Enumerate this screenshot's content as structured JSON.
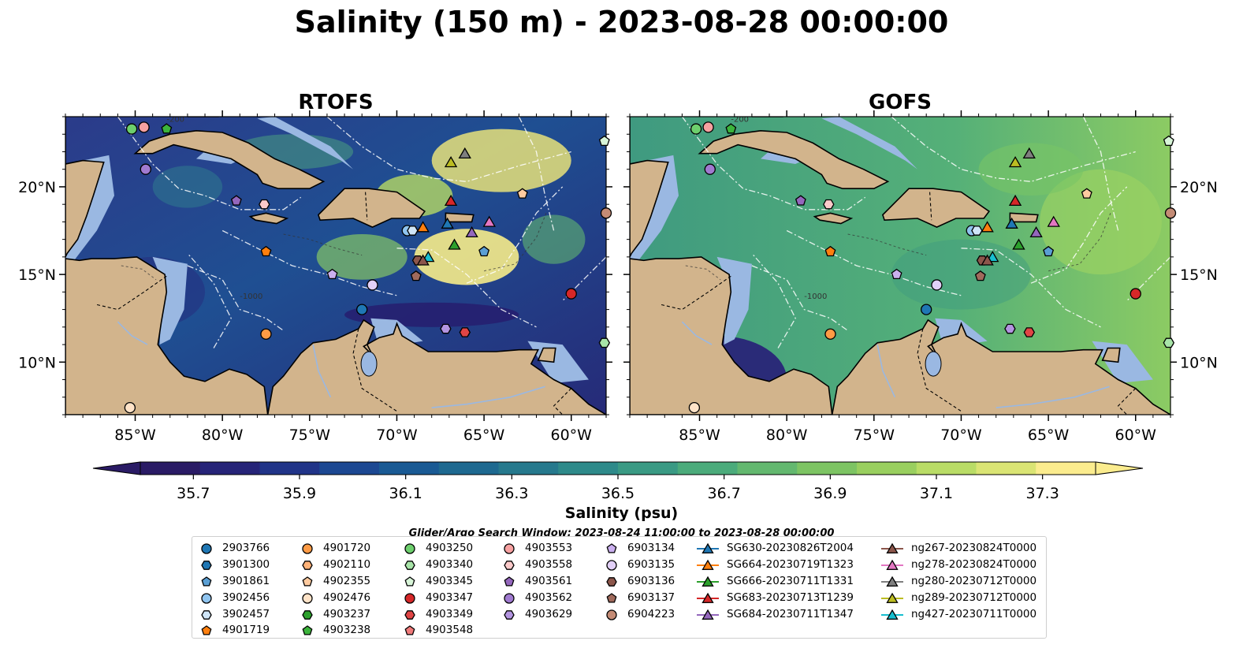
{
  "title": "Salinity (150 m) - 2023-08-28 00:00:00",
  "panels": [
    {
      "name": "RTOFS"
    },
    {
      "name": "GOFS"
    }
  ],
  "map": {
    "lon_range": [
      -89,
      -58
    ],
    "lat_range": [
      7,
      24
    ],
    "lon_ticks": [
      "85°W",
      "80°W",
      "75°W",
      "70°W",
      "65°W",
      "60°W"
    ],
    "lon_tick_values": [
      -85,
      -80,
      -75,
      -70,
      -65,
      -60
    ],
    "lat_ticks": [
      "20°N",
      "15°N",
      "10°N"
    ],
    "lat_tick_values": [
      20,
      15,
      10
    ],
    "land_color": "#d2b48c",
    "shelf_color": "#9ab8e2",
    "bathymetry_contour_labels": [
      "-200",
      "-1000"
    ]
  },
  "colorbar": {
    "label": "Salinity (psu)",
    "range": [
      35.6,
      37.4
    ],
    "tick_labels": [
      "35.7",
      "35.9",
      "36.1",
      "36.3",
      "36.5",
      "36.7",
      "36.9",
      "37.1",
      "37.3"
    ],
    "tick_values": [
      35.7,
      35.9,
      36.1,
      36.3,
      36.5,
      36.7,
      36.9,
      37.1,
      37.3
    ],
    "colors": [
      "#2a1b65",
      "#262478",
      "#213488",
      "#1c4892",
      "#1a5a94",
      "#1e6990",
      "#26798d",
      "#2e8a8a",
      "#3a9a84",
      "#4bab7b",
      "#63b86f",
      "#7dc463",
      "#99cf5f",
      "#b9dc66",
      "#dae474",
      "#fbec8e"
    ]
  },
  "search_window": "Glider/Argo Search Window: 2023-08-24 11:00:00 to 2023-08-28 00:00:00",
  "legend": {
    "columns": [
      [
        {
          "label": "2903766",
          "marker": "circle",
          "color": "#1f77b4"
        },
        {
          "label": "3901300",
          "marker": "hexagon",
          "color": "#1f77b4"
        },
        {
          "label": "3901861",
          "marker": "pentagon",
          "color": "#5a9fd4"
        },
        {
          "label": "3902456",
          "marker": "circle",
          "color": "#8fc4ef"
        },
        {
          "label": "3902457",
          "marker": "hexagon",
          "color": "#cfe5f7"
        },
        {
          "label": "4901719",
          "marker": "pentagon",
          "color": "#ff7f0e"
        }
      ],
      [
        {
          "label": "4901720",
          "marker": "circle",
          "color": "#ff9b45"
        },
        {
          "label": "4902110",
          "marker": "hexagon",
          "color": "#ffb278"
        },
        {
          "label": "4902355",
          "marker": "pentagon",
          "color": "#ffcba0"
        },
        {
          "label": "4902476",
          "marker": "circle",
          "color": "#ffe3c8"
        },
        {
          "label": "4903237",
          "marker": "hexagon",
          "color": "#2ca02c"
        },
        {
          "label": "4903238",
          "marker": "pentagon",
          "color": "#3cb43c"
        }
      ],
      [
        {
          "label": "4903250",
          "marker": "circle",
          "color": "#6dcf6d"
        },
        {
          "label": "4903340",
          "marker": "hexagon",
          "color": "#a8e4a8"
        },
        {
          "label": "4903345",
          "marker": "pentagon",
          "color": "#d8f5d8"
        },
        {
          "label": "4903347",
          "marker": "circle",
          "color": "#d62728"
        },
        {
          "label": "4903349",
          "marker": "hexagon",
          "color": "#e04545"
        },
        {
          "label": "4903548",
          "marker": "pentagon",
          "color": "#f07a7a"
        }
      ],
      [
        {
          "label": "4903553",
          "marker": "circle",
          "color": "#f7a1a1"
        },
        {
          "label": "4903558",
          "marker": "hexagon",
          "color": "#fccaca"
        },
        {
          "label": "4903561",
          "marker": "pentagon",
          "color": "#9467bd"
        },
        {
          "label": "4903562",
          "marker": "circle",
          "color": "#a07ad0"
        },
        {
          "label": "4903629",
          "marker": "hexagon",
          "color": "#b394e0"
        }
      ],
      [
        {
          "label": "6903134",
          "marker": "pentagon",
          "color": "#cbb0ef"
        },
        {
          "label": "6903135",
          "marker": "circle",
          "color": "#e2d0f8"
        },
        {
          "label": "6903136",
          "marker": "hexagon",
          "color": "#8c564b"
        },
        {
          "label": "6903137",
          "marker": "pentagon",
          "color": "#a06a5c"
        },
        {
          "label": "6904223",
          "marker": "circle",
          "color": "#c48b75"
        }
      ],
      [
        {
          "label": "SG630-20230826T2004",
          "marker": "triangle",
          "color": "#1f77b4"
        },
        {
          "label": "SG664-20230719T1323",
          "marker": "triangle",
          "color": "#ff7f0e"
        },
        {
          "label": "SG666-20230711T1331",
          "marker": "triangle",
          "color": "#2ca02c"
        },
        {
          "label": "SG683-20230713T1239",
          "marker": "triangle",
          "color": "#d62728"
        },
        {
          "label": "SG684-20230711T1347",
          "marker": "triangle",
          "color": "#9467bd"
        }
      ],
      [
        {
          "label": "ng267-20230824T0000",
          "marker": "triangle",
          "color": "#8c564b"
        },
        {
          "label": "ng278-20230824T0000",
          "marker": "triangle",
          "color": "#e377c2"
        },
        {
          "label": "ng280-20230712T0000",
          "marker": "triangle",
          "color": "#7f7f7f"
        },
        {
          "label": "ng289-20230712T0000",
          "marker": "triangle",
          "color": "#bcbd22"
        },
        {
          "label": "ng427-20230711T0000",
          "marker": "triangle",
          "color": "#17becf"
        }
      ]
    ]
  },
  "observations": [
    {
      "label": "4903250",
      "lon": -85.2,
      "lat": 23.3
    },
    {
      "label": "4903553",
      "lon": -84.5,
      "lat": 23.4
    },
    {
      "label": "4903238",
      "lon": -83.2,
      "lat": 23.3
    },
    {
      "label": "4903562",
      "lon": -84.4,
      "lat": 21.0
    },
    {
      "label": "4903561",
      "lon": -79.2,
      "lat": 19.2
    },
    {
      "label": "4903558",
      "lon": -77.6,
      "lat": 19.0
    },
    {
      "label": "4901719",
      "lon": -77.5,
      "lat": 16.3
    },
    {
      "label": "4903134",
      "lon": -73.7,
      "lat": 15.0
    },
    {
      "label": "6903135",
      "lon": -71.4,
      "lat": 14.4
    },
    {
      "label": "2903766",
      "lon": -72.0,
      "lat": 13.0
    },
    {
      "label": "4901720",
      "lon": -77.5,
      "lat": 11.6
    },
    {
      "label": "4902476",
      "lon": -85.3,
      "lat": 7.4
    },
    {
      "label": "3902456",
      "lon": -69.4,
      "lat": 17.5
    },
    {
      "label": "3902457",
      "lon": -69.1,
      "lat": 17.5
    },
    {
      "label": "6903136",
      "lon": -68.8,
      "lat": 15.8
    },
    {
      "label": "6903137",
      "lon": -68.9,
      "lat": 14.9
    },
    {
      "label": "4903629",
      "lon": -67.2,
      "lat": 11.9
    },
    {
      "label": "4903349",
      "lon": -66.1,
      "lat": 11.7
    },
    {
      "label": "3901861",
      "lon": -65.0,
      "lat": 16.3
    },
    {
      "label": "4902355",
      "lon": -62.8,
      "lat": 19.6
    },
    {
      "label": "4903347",
      "lon": -60.0,
      "lat": 13.9
    },
    {
      "label": "6904223",
      "lon": -58.0,
      "lat": 18.5
    },
    {
      "label": "4903340",
      "lon": -58.1,
      "lat": 11.1
    },
    {
      "label": "4903345",
      "lon": -58.1,
      "lat": 22.6
    },
    {
      "label": "ng289-20230712T0000",
      "lon": -66.9,
      "lat": 21.4
    },
    {
      "label": "ng280-20230712T0000",
      "lon": -66.1,
      "lat": 21.9
    },
    {
      "label": "SG683-20230713T1239",
      "lon": -66.9,
      "lat": 19.2
    },
    {
      "label": "SG664-20230719T1323",
      "lon": -68.5,
      "lat": 17.7
    },
    {
      "label": "SG630-20230826T2004",
      "lon": -67.1,
      "lat": 17.9
    },
    {
      "label": "SG684-20230711T1347",
      "lon": -65.7,
      "lat": 17.4
    },
    {
      "label": "ng278-20230824T0000",
      "lon": -64.7,
      "lat": 18.0
    },
    {
      "label": "SG666-20230711T1331",
      "lon": -66.7,
      "lat": 16.7
    },
    {
      "label": "ng427-20230711T0000",
      "lon": -68.2,
      "lat": 16.0
    },
    {
      "label": "ng267-20230824T0000",
      "lon": -68.5,
      "lat": 15.8
    }
  ]
}
